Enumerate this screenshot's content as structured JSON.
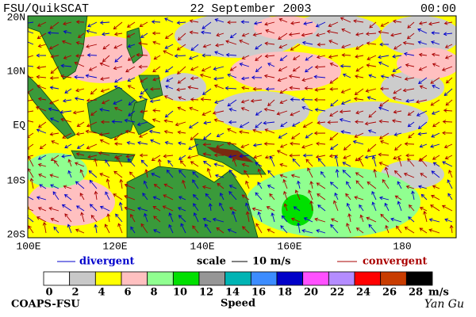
{
  "header": {
    "left": "FSU/QuikSCAT",
    "center": "22 September 2003",
    "right": "00:00"
  },
  "map": {
    "lat_labels": [
      "20N",
      "10N",
      "EQ",
      "10S",
      "20S"
    ],
    "lon_labels": [
      "100E",
      "120E",
      "140E",
      "160E",
      "180"
    ]
  },
  "legend": {
    "divergent": "divergent",
    "scale": "scale",
    "scale_value": "10 m/s",
    "convergent": "convergent"
  },
  "colorbar": {
    "colors": [
      "#ffffff",
      "#c8c8c8",
      "#ffff00",
      "#ffc0c0",
      "#90ff90",
      "#00e000",
      "#969696",
      "#00b4b4",
      "#3c8cff",
      "#0000c8",
      "#ff50ff",
      "#b48cff",
      "#ff0000",
      "#c83c00",
      "#000000"
    ],
    "ticks": [
      0,
      2,
      4,
      6,
      8,
      10,
      12,
      14,
      16,
      18,
      20,
      22,
      24,
      26,
      28
    ],
    "unit": "m/s",
    "label": "Speed"
  },
  "footer": {
    "left": "COAPS-FSU",
    "right": "Yan Gu"
  }
}
